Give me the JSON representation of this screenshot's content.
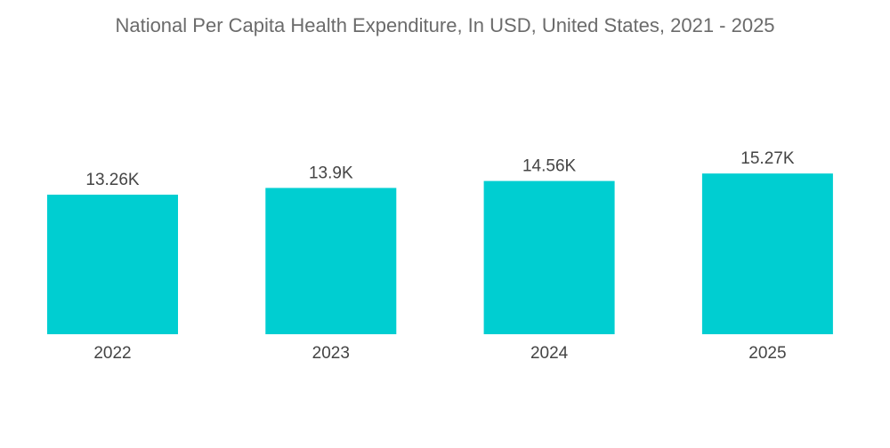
{
  "chart_data": {
    "type": "bar",
    "title": "National Per Capita Health Expenditure, In USD, United States,  2021 - 2025",
    "categories": [
      "2022",
      "2023",
      "2024",
      "2025"
    ],
    "values": [
      13.26,
      13.9,
      14.56,
      15.27
    ],
    "data_labels": [
      "13.26K",
      "13.9K",
      "14.56K",
      "15.27K"
    ],
    "unit": "K USD",
    "xlabel": "",
    "ylabel": "",
    "ylim": [
      0,
      20
    ],
    "grid": false,
    "legend": "none",
    "bar_color": "#00CED1"
  }
}
